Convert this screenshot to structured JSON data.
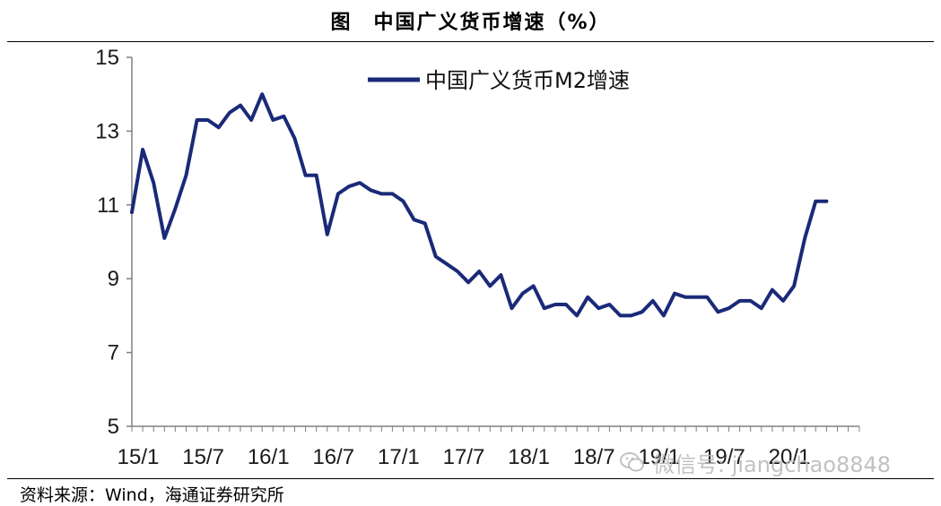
{
  "header": {
    "title": "图　中国广义货币增速（%）"
  },
  "footer": {
    "source": "资料来源：Wind，海通证券研究所"
  },
  "watermark": {
    "text": "微信号: jiangchao8848",
    "icon": "wechat-icon"
  },
  "chart_data": {
    "type": "line",
    "title": "",
    "xlabel": "",
    "ylabel": "",
    "ylim": [
      5,
      15
    ],
    "yticks": [
      5,
      7,
      9,
      11,
      13,
      15
    ],
    "x_tick_labels": [
      "15/1",
      "15/7",
      "16/1",
      "16/7",
      "17/1",
      "17/7",
      "18/1",
      "18/7",
      "19/1",
      "19/7",
      "20/1"
    ],
    "grid": false,
    "legend_position": "top-center",
    "colors": {
      "line": "#1a2a78",
      "axis": "#808080"
    },
    "series": [
      {
        "name": "中国广义货币M2增速",
        "x": [
          "15/1",
          "15/2",
          "15/3",
          "15/4",
          "15/5",
          "15/6",
          "15/7",
          "15/8",
          "15/9",
          "15/10",
          "15/11",
          "15/12",
          "16/1",
          "16/2",
          "16/3",
          "16/4",
          "16/5",
          "16/6",
          "16/7",
          "16/8",
          "16/9",
          "16/10",
          "16/11",
          "16/12",
          "17/1",
          "17/2",
          "17/3",
          "17/4",
          "17/5",
          "17/6",
          "17/7",
          "17/8",
          "17/9",
          "17/10",
          "17/11",
          "17/12",
          "18/1",
          "18/2",
          "18/3",
          "18/4",
          "18/5",
          "18/6",
          "18/7",
          "18/8",
          "18/9",
          "18/10",
          "18/11",
          "18/12",
          "19/1",
          "19/2",
          "19/3",
          "19/4",
          "19/5",
          "19/6",
          "19/7",
          "19/8",
          "19/9",
          "19/10",
          "19/11",
          "19/12",
          "20/1",
          "20/2",
          "20/3",
          "20/4",
          "20/5"
        ],
        "values": [
          10.8,
          12.5,
          11.6,
          10.1,
          10.9,
          11.8,
          13.3,
          13.3,
          13.1,
          13.5,
          13.7,
          13.3,
          14.0,
          13.3,
          13.4,
          12.8,
          11.8,
          11.8,
          10.2,
          11.3,
          11.5,
          11.6,
          11.4,
          11.3,
          11.3,
          11.1,
          10.6,
          10.5,
          9.6,
          9.4,
          9.2,
          8.9,
          9.2,
          8.8,
          9.1,
          8.2,
          8.6,
          8.8,
          8.2,
          8.3,
          8.3,
          8.0,
          8.5,
          8.2,
          8.3,
          8.0,
          8.0,
          8.1,
          8.4,
          8.0,
          8.6,
          8.5,
          8.5,
          8.5,
          8.1,
          8.2,
          8.4,
          8.4,
          8.2,
          8.7,
          8.4,
          8.8,
          10.1,
          11.1,
          11.1
        ]
      }
    ]
  }
}
